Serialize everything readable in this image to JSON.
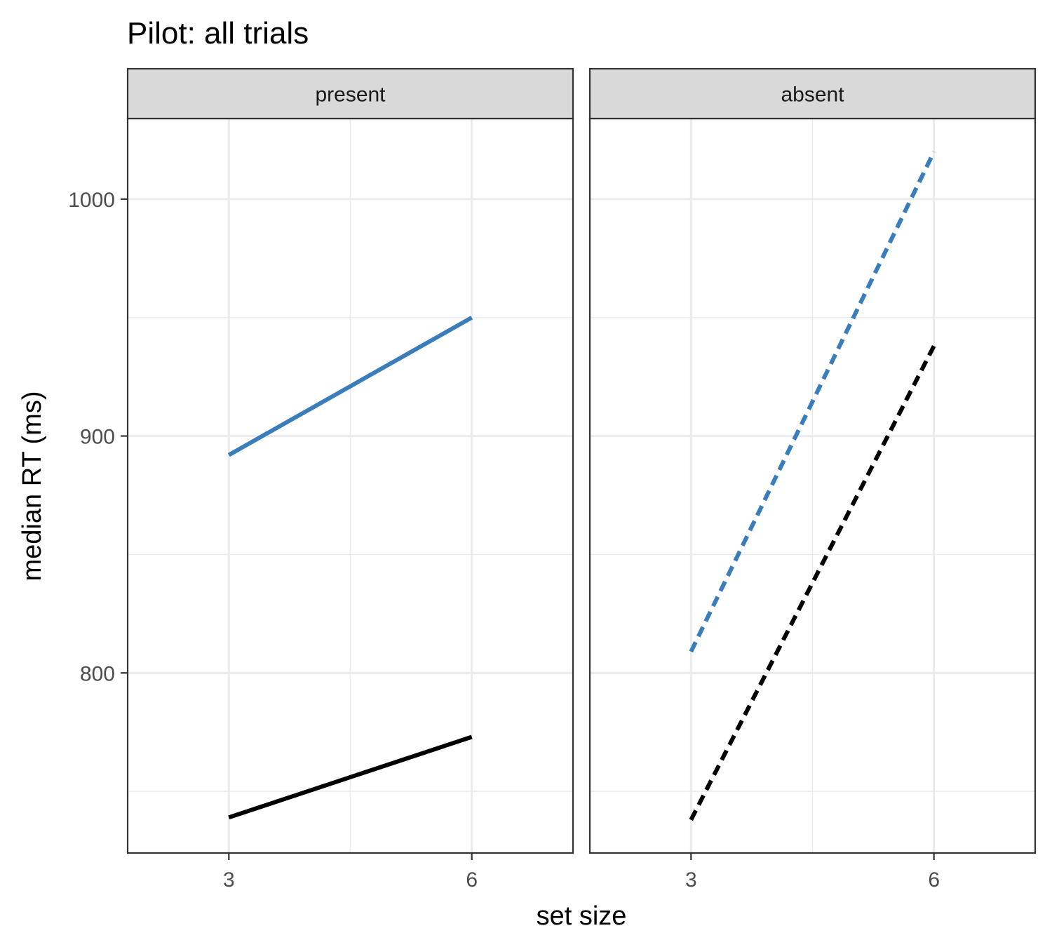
{
  "title": "Pilot: all trials",
  "chart_data": {
    "type": "line",
    "title": "Pilot: all trials",
    "xlabel": "set size",
    "ylabel": "median RT (ms)",
    "x_ticks": [
      3,
      6
    ],
    "y_ticks": [
      800,
      900,
      1000
    ],
    "xlim": [
      1.75,
      7.25
    ],
    "ylim": [
      724,
      1034
    ],
    "grid": true,
    "legend": "none",
    "colors": {
      "blue": "#3a7dbb",
      "black": "#000000"
    },
    "panels": [
      {
        "label": "present",
        "series": [
          {
            "color": "#3a7dbb",
            "linestyle": "solid",
            "x": [
              3,
              6
            ],
            "y": [
              892,
              950
            ]
          },
          {
            "color": "#000000",
            "linestyle": "solid",
            "x": [
              3,
              6
            ],
            "y": [
              739,
              773
            ]
          }
        ]
      },
      {
        "label": "absent",
        "series": [
          {
            "color": "#3a7dbb",
            "linestyle": "dashed",
            "x": [
              3,
              6
            ],
            "y": [
              809,
              1020
            ]
          },
          {
            "color": "#000000",
            "linestyle": "dashed",
            "x": [
              3,
              6
            ],
            "y": [
              738,
              938
            ]
          }
        ]
      }
    ]
  }
}
